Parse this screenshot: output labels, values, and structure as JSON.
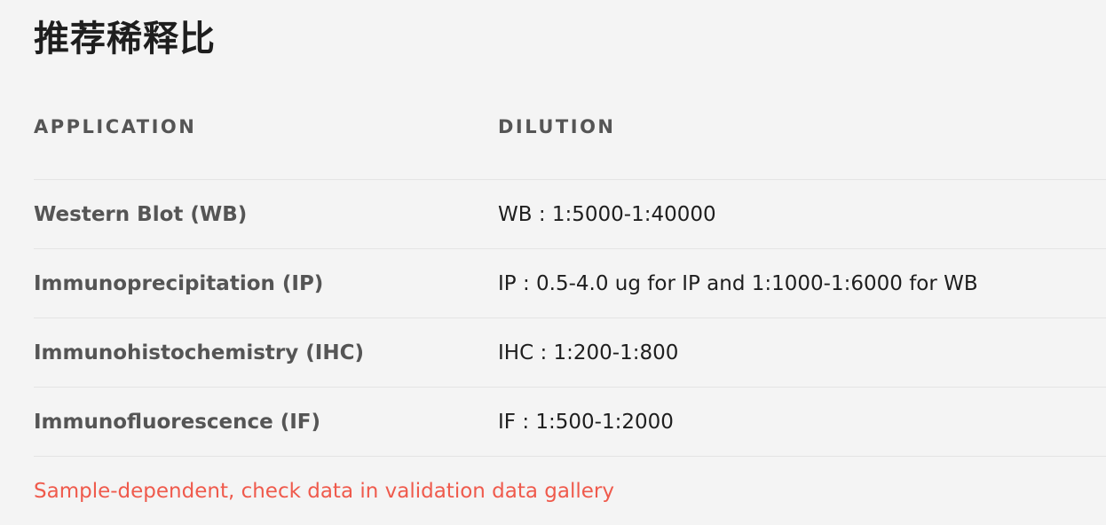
{
  "title": "推荐稀释比",
  "table": {
    "headers": {
      "application": "APPLICATION",
      "dilution": "DILUTION"
    },
    "rows": [
      {
        "application": "Western Blot (WB)",
        "dilution": "WB : 1:5000-1:40000"
      },
      {
        "application": "Immunoprecipitation (IP)",
        "dilution": "IP : 0.5-4.0 ug for IP and 1:1000-1:6000 for WB"
      },
      {
        "application": "Immunohistochemistry (IHC)",
        "dilution": "IHC : 1:200-1:800"
      },
      {
        "application": "Immunofluorescence (IF)",
        "dilution": "IF : 1:500-1:2000"
      }
    ],
    "note": "Sample-dependent, check data in validation data gallery"
  },
  "colors": {
    "note": "#ef5a4c",
    "header_text": "#555555",
    "body_text": "#1e1e1e",
    "background": "#f4f4f4",
    "divider": "#e4e4e4"
  }
}
